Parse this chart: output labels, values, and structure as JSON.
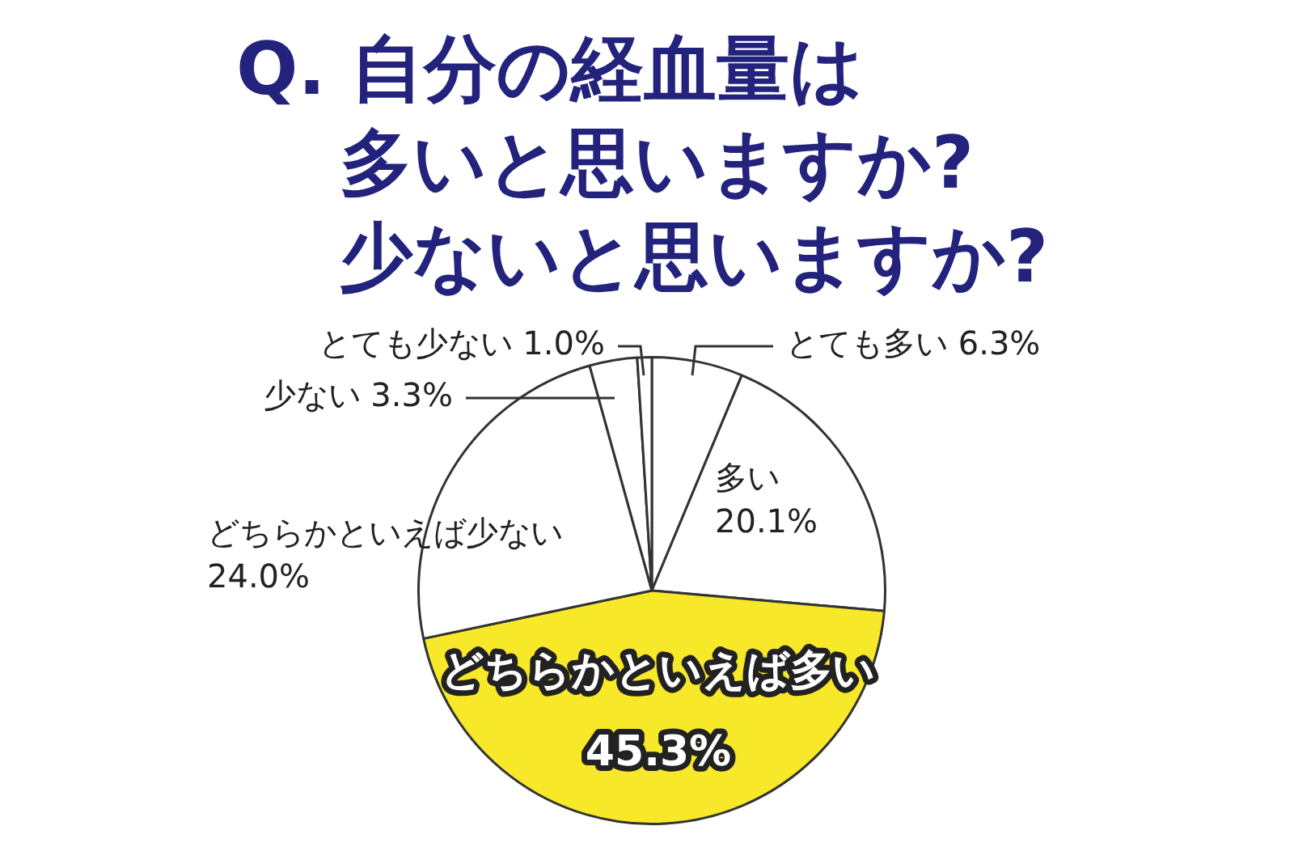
{
  "chart_data": {
    "type": "pie",
    "title": "Q. 自分の経血量は多いと思いますか?少ないと思いますか?",
    "categories": [
      "とても多い",
      "多い",
      "どちらかといえば多い",
      "どちらかといえば少ない",
      "少ない",
      "とても少ない"
    ],
    "values": [
      6.3,
      20.1,
      45.3,
      24.0,
      3.3,
      1.0
    ],
    "value_labels": [
      "6.3%",
      "20.1%",
      "45.3%",
      "24.0%",
      "3.3%",
      "1.0%"
    ],
    "colors": [
      "#ffffff",
      "#ffffff",
      "#f8e82a",
      "#ffffff",
      "#ffffff",
      "#ffffff"
    ],
    "legend": false
  }
}
